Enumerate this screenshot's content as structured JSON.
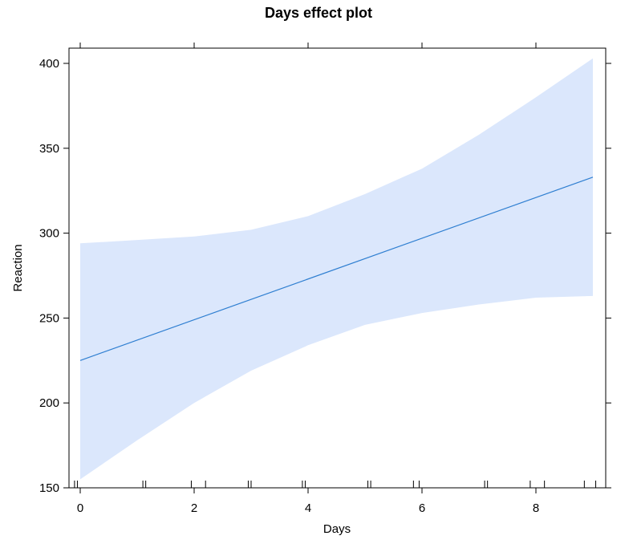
{
  "chart_data": {
    "type": "line",
    "title": "Days effect plot",
    "xlabel": "Days",
    "ylabel": "Reaction",
    "xlim": [
      -0.2,
      9.2
    ],
    "ylim": [
      150,
      400
    ],
    "grid": false,
    "legend": "none",
    "x_ticks": [
      0,
      2,
      4,
      6,
      8
    ],
    "y_ticks": [
      150,
      200,
      250,
      300,
      350,
      400
    ],
    "series": [
      {
        "x": [
          0,
          9
        ],
        "y": [
          225,
          333
        ],
        "color": "#2f7fd1"
      }
    ],
    "confidence_band": {
      "color": "#dbe7fc",
      "x": [
        0,
        1,
        2,
        3,
        4,
        5,
        6,
        7,
        8,
        9
      ],
      "lower": [
        155,
        178,
        200,
        219,
        234,
        246,
        253,
        258,
        262,
        263
      ],
      "upper": [
        294,
        296,
        298,
        302,
        310,
        323,
        338,
        358,
        380,
        403
      ]
    },
    "rug": [
      -0.1,
      -0.05,
      1.1,
      1.15,
      1.95,
      2.2,
      2.95,
      3.0,
      3.9,
      3.95,
      5.05,
      5.1,
      5.85,
      5.95,
      7.1,
      7.15,
      7.9,
      8.15,
      8.85,
      9.05
    ]
  }
}
